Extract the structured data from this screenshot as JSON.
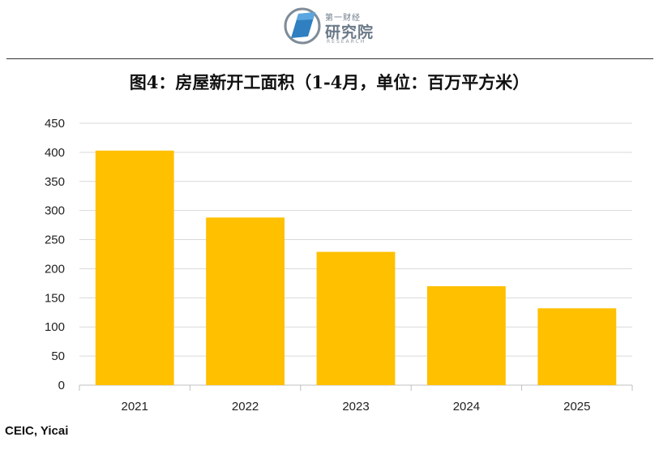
{
  "header": {
    "logo_top": "第一财经",
    "logo_main": "研究院",
    "logo_sub": "RESEARCH"
  },
  "title": "图4：房屋新开工面积（1-4月，单位：百万平方米）",
  "source": "CEIC, Yicai",
  "colors": {
    "bar": "#FFC000",
    "grid": "#d9d9d9",
    "axis": "#bfbfbf"
  },
  "chart_data": {
    "type": "bar",
    "categories": [
      "2021",
      "2022",
      "2023",
      "2024",
      "2025"
    ],
    "values": [
      403,
      288,
      229,
      170,
      132
    ],
    "title": "图4：房屋新开工面积（1-4月，单位：百万平方米）",
    "xlabel": "",
    "ylabel": "",
    "ylim": [
      0,
      450
    ],
    "yticks": [
      0,
      50,
      100,
      150,
      200,
      250,
      300,
      350,
      400,
      450
    ],
    "grid": true,
    "legend": "none"
  }
}
